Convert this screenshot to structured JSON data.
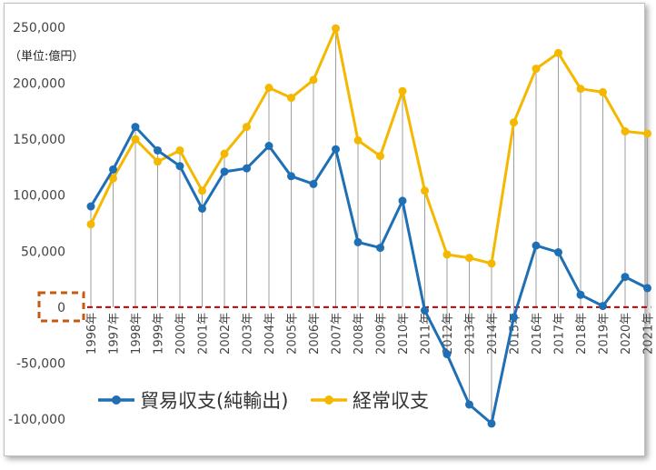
{
  "chart_data": {
    "type": "line",
    "unit_label": "（単位:億円）",
    "categories": [
      "1996年",
      "1997年",
      "1998年",
      "1999年",
      "2000年",
      "2001年",
      "2002年",
      "2003年",
      "2004年",
      "2005年",
      "2006年",
      "2007年",
      "2008年",
      "2009年",
      "2010年",
      "2011年",
      "2012年",
      "2013年",
      "2014年",
      "2015年",
      "2016年",
      "2017年",
      "2018年",
      "2019年",
      "2020年",
      "2021年"
    ],
    "series": [
      {
        "name": "貿易収支(純輸出)",
        "color": "#1f6fb4",
        "values": [
          90000,
          123000,
          161000,
          140000,
          126000,
          88000,
          121000,
          124000,
          144000,
          117000,
          110000,
          141000,
          58000,
          53000,
          95000,
          -3000,
          -42000,
          -87000,
          -104000,
          -9000,
          55000,
          49000,
          11000,
          1000,
          27000,
          17000
        ]
      },
      {
        "name": "経常収支",
        "color": "#f5b800",
        "values": [
          74000,
          115000,
          150000,
          130000,
          140000,
          104000,
          137000,
          161000,
          196000,
          187000,
          203000,
          249000,
          149000,
          135000,
          193000,
          104000,
          47000,
          44000,
          39000,
          165000,
          213000,
          227000,
          195000,
          192000,
          157000,
          155000
        ]
      }
    ],
    "ylim": [
      -100000,
      250000
    ],
    "ytick_values": [
      -100000,
      -50000,
      0,
      50000,
      100000,
      150000,
      200000,
      250000
    ],
    "ytick_labels": [
      "-100,000",
      "-50,000",
      "0",
      "50,000",
      "100,000",
      "150,000",
      "200,000",
      "250,000"
    ],
    "zero_line_color": "#c00000",
    "zero_highlight_color": "#c55a11",
    "legend_position": "bottom-left",
    "grid": "vertical drop lines"
  }
}
